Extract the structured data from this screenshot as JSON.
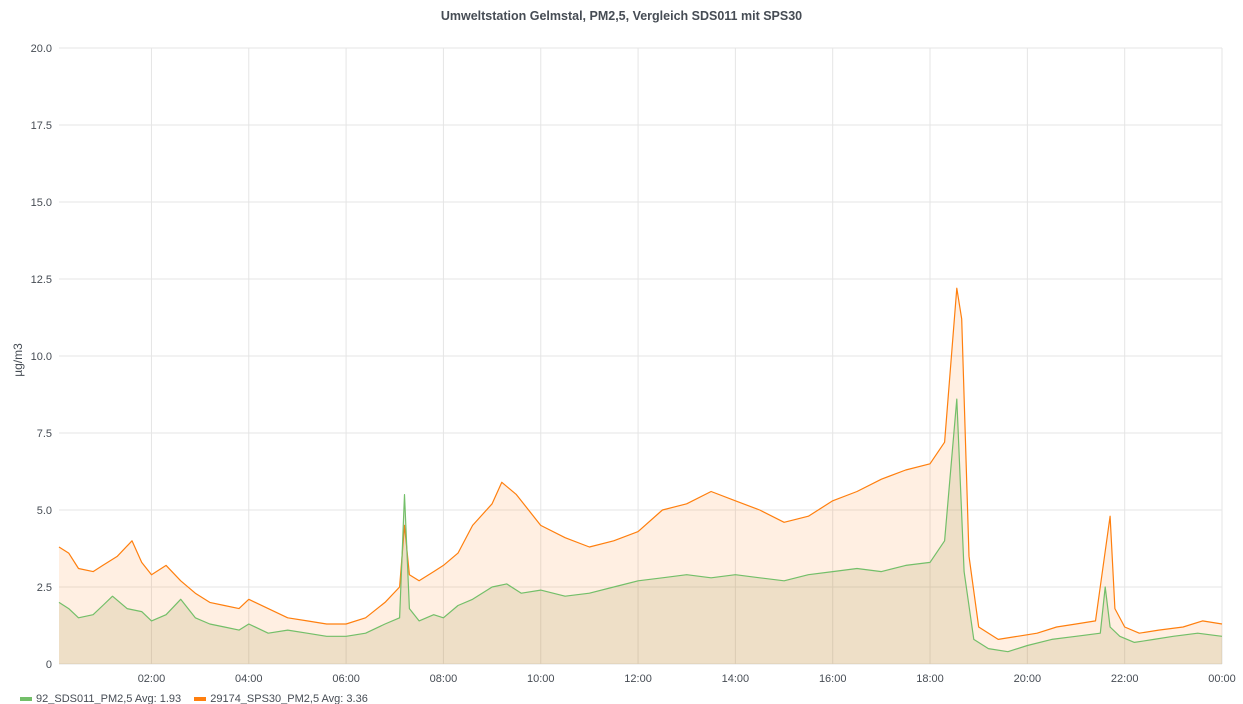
{
  "chart_data": {
    "type": "area",
    "title": "Umweltstation Gelmstal, PM2,5, Vergleich SDS011 mit SPS30",
    "ylabel": "µg/m3",
    "xlabel": "",
    "ylim": [
      0,
      20
    ],
    "xlim": [
      0.1,
      24
    ],
    "y_ticks": [
      "20.0",
      "17.5",
      "15.0",
      "12.5",
      "10.0",
      "7.5",
      "5.0",
      "2.5",
      "0"
    ],
    "x_ticks": [
      "02:00",
      "04:00",
      "06:00",
      "08:00",
      "10:00",
      "12:00",
      "14:00",
      "16:00",
      "18:00",
      "20:00",
      "22:00",
      "00:00"
    ],
    "grid": true,
    "legend_position": "bottom-left",
    "x_unit": "hours",
    "series": [
      {
        "name": "92_SDS011_PM2,5",
        "legend_label": "92_SDS011_PM2,5  Avg: 1.93",
        "color": "#73bf69",
        "fill": "rgba(160,150,80,0.18)",
        "x": [
          0.1,
          0.3,
          0.5,
          0.8,
          1.0,
          1.2,
          1.5,
          1.8,
          2.0,
          2.3,
          2.6,
          2.9,
          3.2,
          3.5,
          3.8,
          4.0,
          4.4,
          4.8,
          5.2,
          5.6,
          6.0,
          6.4,
          6.8,
          7.1,
          7.2,
          7.3,
          7.5,
          7.8,
          8.0,
          8.3,
          8.6,
          9.0,
          9.3,
          9.6,
          10.0,
          10.5,
          11.0,
          11.5,
          12.0,
          12.5,
          13.0,
          13.5,
          14.0,
          14.5,
          15.0,
          15.5,
          16.0,
          16.5,
          17.0,
          17.5,
          18.0,
          18.3,
          18.55,
          18.7,
          18.9,
          19.2,
          19.6,
          20.0,
          20.5,
          21.0,
          21.5,
          21.6,
          21.7,
          21.9,
          22.2,
          22.6,
          23.0,
          23.5,
          24.0
        ],
        "values": [
          2.0,
          1.8,
          1.5,
          1.6,
          1.9,
          2.2,
          1.8,
          1.7,
          1.4,
          1.6,
          2.1,
          1.5,
          1.3,
          1.2,
          1.1,
          1.3,
          1.0,
          1.1,
          1.0,
          0.9,
          0.9,
          1.0,
          1.3,
          1.5,
          5.5,
          1.8,
          1.4,
          1.6,
          1.5,
          1.9,
          2.1,
          2.5,
          2.6,
          2.3,
          2.4,
          2.2,
          2.3,
          2.5,
          2.7,
          2.8,
          2.9,
          2.8,
          2.9,
          2.8,
          2.7,
          2.9,
          3.0,
          3.1,
          3.0,
          3.2,
          3.3,
          4.0,
          8.6,
          3.0,
          0.8,
          0.5,
          0.4,
          0.6,
          0.8,
          0.9,
          1.0,
          2.5,
          1.2,
          0.9,
          0.7,
          0.8,
          0.9,
          1.0,
          0.9
        ]
      },
      {
        "name": "29174_SPS30_PM2,5",
        "legend_label": "29174_SPS30_PM2,5  Avg: 3.36",
        "color": "#ff7f0e",
        "fill": "rgba(255,127,14,0.12)",
        "x": [
          0.1,
          0.3,
          0.5,
          0.8,
          1.0,
          1.3,
          1.6,
          1.8,
          2.0,
          2.3,
          2.6,
          2.9,
          3.2,
          3.5,
          3.8,
          4.0,
          4.4,
          4.8,
          5.2,
          5.6,
          6.0,
          6.4,
          6.8,
          7.1,
          7.2,
          7.3,
          7.5,
          7.8,
          8.0,
          8.3,
          8.6,
          9.0,
          9.2,
          9.5,
          10.0,
          10.5,
          11.0,
          11.5,
          12.0,
          12.5,
          13.0,
          13.5,
          14.0,
          14.5,
          15.0,
          15.5,
          16.0,
          16.5,
          17.0,
          17.5,
          18.0,
          18.3,
          18.55,
          18.65,
          18.8,
          19.0,
          19.4,
          19.8,
          20.2,
          20.6,
          21.0,
          21.4,
          21.7,
          21.8,
          22.0,
          22.3,
          22.7,
          23.2,
          23.6,
          24.0
        ],
        "values": [
          3.8,
          3.6,
          3.1,
          3.0,
          3.2,
          3.5,
          4.0,
          3.3,
          2.9,
          3.2,
          2.7,
          2.3,
          2.0,
          1.9,
          1.8,
          2.1,
          1.8,
          1.5,
          1.4,
          1.3,
          1.3,
          1.5,
          2.0,
          2.5,
          4.5,
          2.9,
          2.7,
          3.0,
          3.2,
          3.6,
          4.5,
          5.2,
          5.9,
          5.5,
          4.5,
          4.1,
          3.8,
          4.0,
          4.3,
          5.0,
          5.2,
          5.6,
          5.3,
          5.0,
          4.6,
          4.8,
          5.3,
          5.6,
          6.0,
          6.3,
          6.5,
          7.2,
          12.2,
          11.2,
          3.5,
          1.2,
          0.8,
          0.9,
          1.0,
          1.2,
          1.3,
          1.4,
          4.8,
          1.8,
          1.2,
          1.0,
          1.1,
          1.2,
          1.4,
          1.3
        ]
      }
    ]
  }
}
